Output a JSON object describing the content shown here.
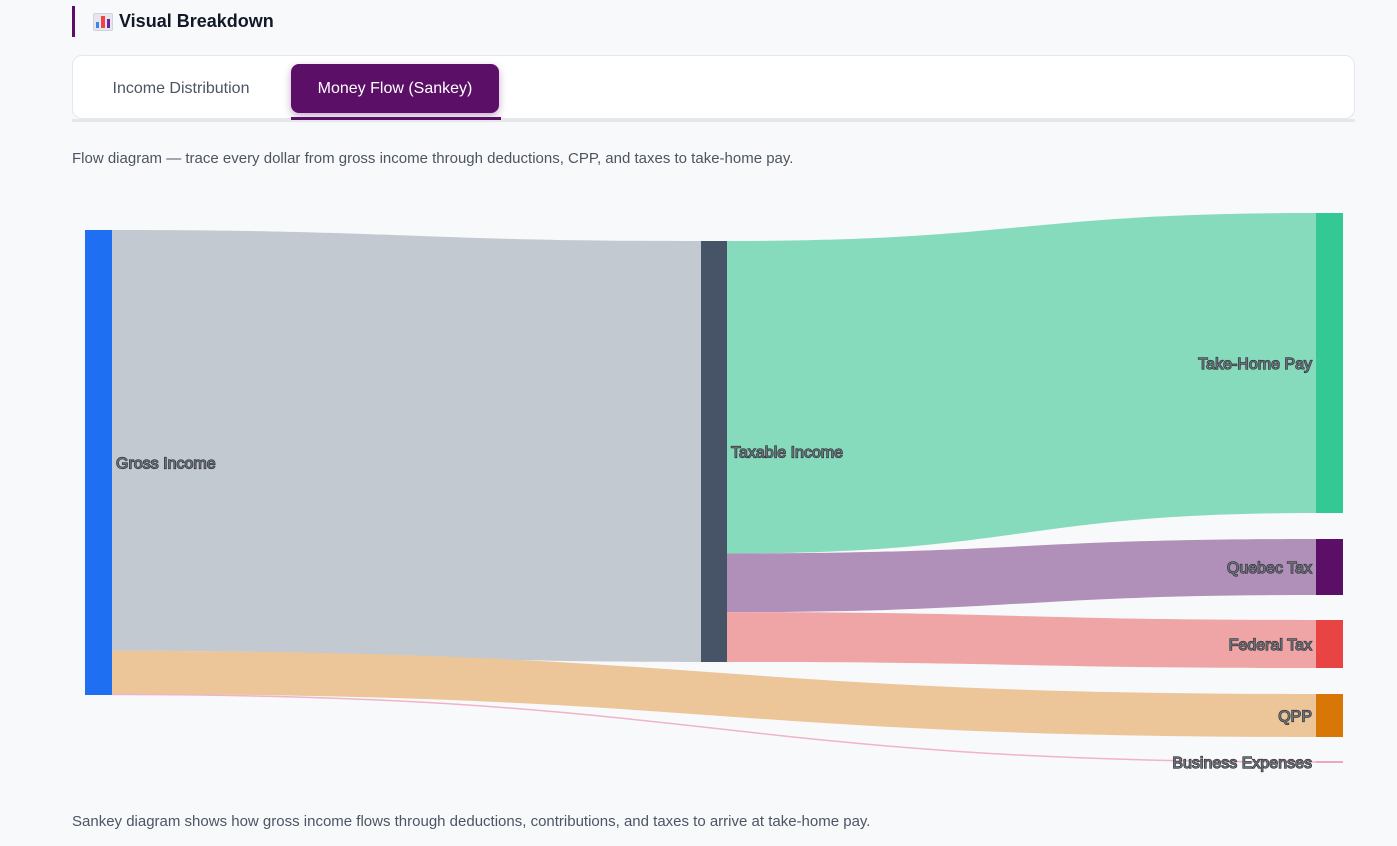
{
  "section": {
    "title": "Visual Breakdown",
    "icon": "bar-chart-icon"
  },
  "tabs": [
    {
      "label": "Income Distribution",
      "active": false
    },
    {
      "label": "Money Flow (Sankey)",
      "active": true
    }
  ],
  "captions": {
    "top": "Flow diagram — trace every dollar from gross income through deductions, CPP, and taxes to take-home pay.",
    "bottom": "Sankey diagram shows how gross income flows through deductions, contributions, and taxes to arrive at take-home pay."
  },
  "colors": {
    "accent": "#5b0f66",
    "tab_inactive_text": "#4b5563"
  },
  "chart_data": {
    "type": "sankey",
    "nodes": [
      {
        "id": "gross",
        "label": "Gross Income",
        "color": "#1f6ff2",
        "column": 0
      },
      {
        "id": "taxable",
        "label": "Taxable Income",
        "color": "#475467",
        "column": 1
      },
      {
        "id": "takehome",
        "label": "Take-Home Pay",
        "color": "#34c895",
        "column": 2
      },
      {
        "id": "quebec",
        "label": "Quebec Tax",
        "color": "#5b0f66",
        "column": 2
      },
      {
        "id": "federal",
        "label": "Federal Tax",
        "color": "#e84444",
        "column": 2
      },
      {
        "id": "qpp",
        "label": "QPP",
        "color": "#d97706",
        "column": 2
      },
      {
        "id": "business",
        "label": "Business Expenses",
        "color": "#f0a3c4",
        "column": 2
      }
    ],
    "links": [
      {
        "source": "gross",
        "target": "taxable",
        "value": 90.5,
        "color": "#c3c9d0"
      },
      {
        "source": "gross",
        "target": "qpp",
        "value": 9.3,
        "color": "#ecc699"
      },
      {
        "source": "gross",
        "target": "business",
        "value": 0.2,
        "color": "#f0b3c8"
      },
      {
        "source": "taxable",
        "target": "takehome",
        "value": 64.5,
        "color": "#87dbbd"
      },
      {
        "source": "taxable",
        "target": "quebec",
        "value": 12.1,
        "color": "#b08fb8"
      },
      {
        "source": "taxable",
        "target": "federal",
        "value": 10.3,
        "color": "#efa5a5"
      }
    ]
  }
}
